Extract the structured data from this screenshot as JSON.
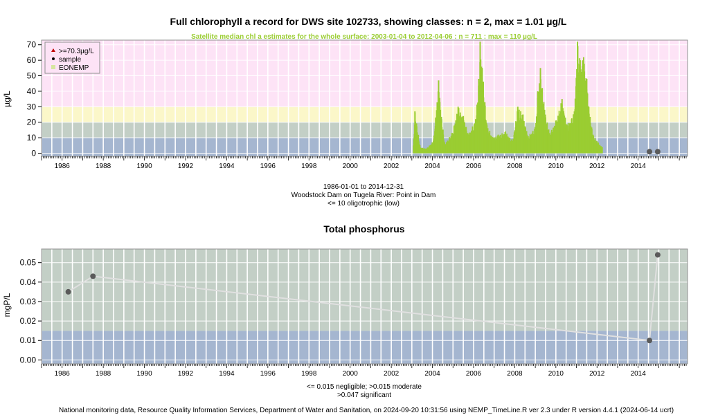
{
  "chart_data": [
    {
      "type": "bar",
      "title": "Full chlorophyll a record for DWS site 102733, showing classes: n = 2, max = 1.01 µg/L",
      "subtitle": "Satellite median chl a estimates for the whole surface: 2003-01-04 to 2012-04-06 : n = 711 : max = 110 µg/L",
      "ylabel": "µg/L",
      "ylim": [
        -2,
        73
      ],
      "xlim": [
        1985.0,
        2016.4
      ],
      "yticks": [
        "0",
        "10",
        "20",
        "30",
        "40",
        "50",
        "60",
        "70"
      ],
      "xticks": [
        "1986",
        "1988",
        "1990",
        "1992",
        "1994",
        "1996",
        "1998",
        "2000",
        "2002",
        "2004",
        "2006",
        "2008",
        "2010",
        "2012",
        "2014"
      ],
      "bands": [
        {
          "from": -2,
          "to": 10,
          "color": "#a5b6d0"
        },
        {
          "from": 10,
          "to": 20,
          "color": "#c3cfc6"
        },
        {
          "from": 20,
          "to": 30,
          "color": "#fbf7c9"
        },
        {
          "from": 30,
          "to": 73,
          "color": "#fde3f6"
        }
      ],
      "legend": {
        "position": "top-left",
        "entries": [
          {
            "label": ">=70.3µg/L",
            "symbol": "triangle",
            "color": "#c00000"
          },
          {
            "label": "sample",
            "symbol": "dot",
            "color": "#000000"
          },
          {
            "label": "EONEMP",
            "symbol": "square",
            "color": "#d6e6a0"
          }
        ]
      },
      "satellite_color": "#9acd32",
      "satellite_peaks": [
        {
          "x": 2003.08,
          "y": 5
        },
        {
          "x": 2003.15,
          "y": 27
        },
        {
          "x": 2003.4,
          "y": 4
        },
        {
          "x": 2003.7,
          "y": 3
        },
        {
          "x": 2004.05,
          "y": 8
        },
        {
          "x": 2004.3,
          "y": 47
        },
        {
          "x": 2004.45,
          "y": 22
        },
        {
          "x": 2004.6,
          "y": 6
        },
        {
          "x": 2004.95,
          "y": 13
        },
        {
          "x": 2005.25,
          "y": 30
        },
        {
          "x": 2005.5,
          "y": 24
        },
        {
          "x": 2005.75,
          "y": 12
        },
        {
          "x": 2006.1,
          "y": 22
        },
        {
          "x": 2006.25,
          "y": 48
        },
        {
          "x": 2006.32,
          "y": 72
        },
        {
          "x": 2006.42,
          "y": 55
        },
        {
          "x": 2006.65,
          "y": 18
        },
        {
          "x": 2006.95,
          "y": 10
        },
        {
          "x": 2007.2,
          "y": 12
        },
        {
          "x": 2007.55,
          "y": 14
        },
        {
          "x": 2007.9,
          "y": 8
        },
        {
          "x": 2008.15,
          "y": 30
        },
        {
          "x": 2008.4,
          "y": 25
        },
        {
          "x": 2008.65,
          "y": 11
        },
        {
          "x": 2009.0,
          "y": 17
        },
        {
          "x": 2009.12,
          "y": 40
        },
        {
          "x": 2009.25,
          "y": 55
        },
        {
          "x": 2009.45,
          "y": 28
        },
        {
          "x": 2009.7,
          "y": 13
        },
        {
          "x": 2010.0,
          "y": 21
        },
        {
          "x": 2010.3,
          "y": 35
        },
        {
          "x": 2010.55,
          "y": 18
        },
        {
          "x": 2010.9,
          "y": 27
        },
        {
          "x": 2011.05,
          "y": 72
        },
        {
          "x": 2011.18,
          "y": 60
        },
        {
          "x": 2011.35,
          "y": 62
        },
        {
          "x": 2011.5,
          "y": 48
        },
        {
          "x": 2011.6,
          "y": 30
        },
        {
          "x": 2011.8,
          "y": 12
        },
        {
          "x": 2012.05,
          "y": 7
        },
        {
          "x": 2012.25,
          "y": 4
        }
      ],
      "samples": [
        {
          "x": 2014.55,
          "y": 1.0
        },
        {
          "x": 2014.95,
          "y": 1.01
        }
      ]
    },
    {
      "type": "line",
      "title": "Total phosphorus",
      "ylabel": "mgP/L",
      "ylim": [
        -0.002,
        0.057
      ],
      "xlim": [
        1985.0,
        2016.4
      ],
      "yticks": [
        "0.00",
        "0.01",
        "0.02",
        "0.03",
        "0.04",
        "0.05"
      ],
      "xticks": [
        "1986",
        "1988",
        "1990",
        "1992",
        "1994",
        "1996",
        "1998",
        "2000",
        "2002",
        "2004",
        "2006",
        "2008",
        "2010",
        "2012",
        "2014"
      ],
      "bands": [
        {
          "from": -0.002,
          "to": 0.015,
          "color": "#a5b6d0"
        },
        {
          "from": 0.015,
          "to": 0.057,
          "color": "#c3cfc6"
        }
      ],
      "points": [
        {
          "x": 1986.3,
          "y": 0.035
        },
        {
          "x": 1987.5,
          "y": 0.043
        },
        {
          "x": 2014.55,
          "y": 0.01
        },
        {
          "x": 2014.95,
          "y": 0.054
        }
      ]
    }
  ],
  "captions": {
    "range": "1986-01-01 to 2014-12-31",
    "site": "Woodstock Dam on Tugela River: Point in Dam",
    "class": "<= 10 oligotrophic (low)",
    "tp_class_1": "<= 0.015 negligible; >0.015 moderate",
    "tp_class_2": ">0.047 significant",
    "footer": "National monitoring data, Resource Quality Information Services, Department of Water and Sanitation, on 2024-09-20 10:31:56 using NEMP_TimeLine.R ver 2.3 under R version 4.4.1 (2024-06-14 ucrt)"
  }
}
